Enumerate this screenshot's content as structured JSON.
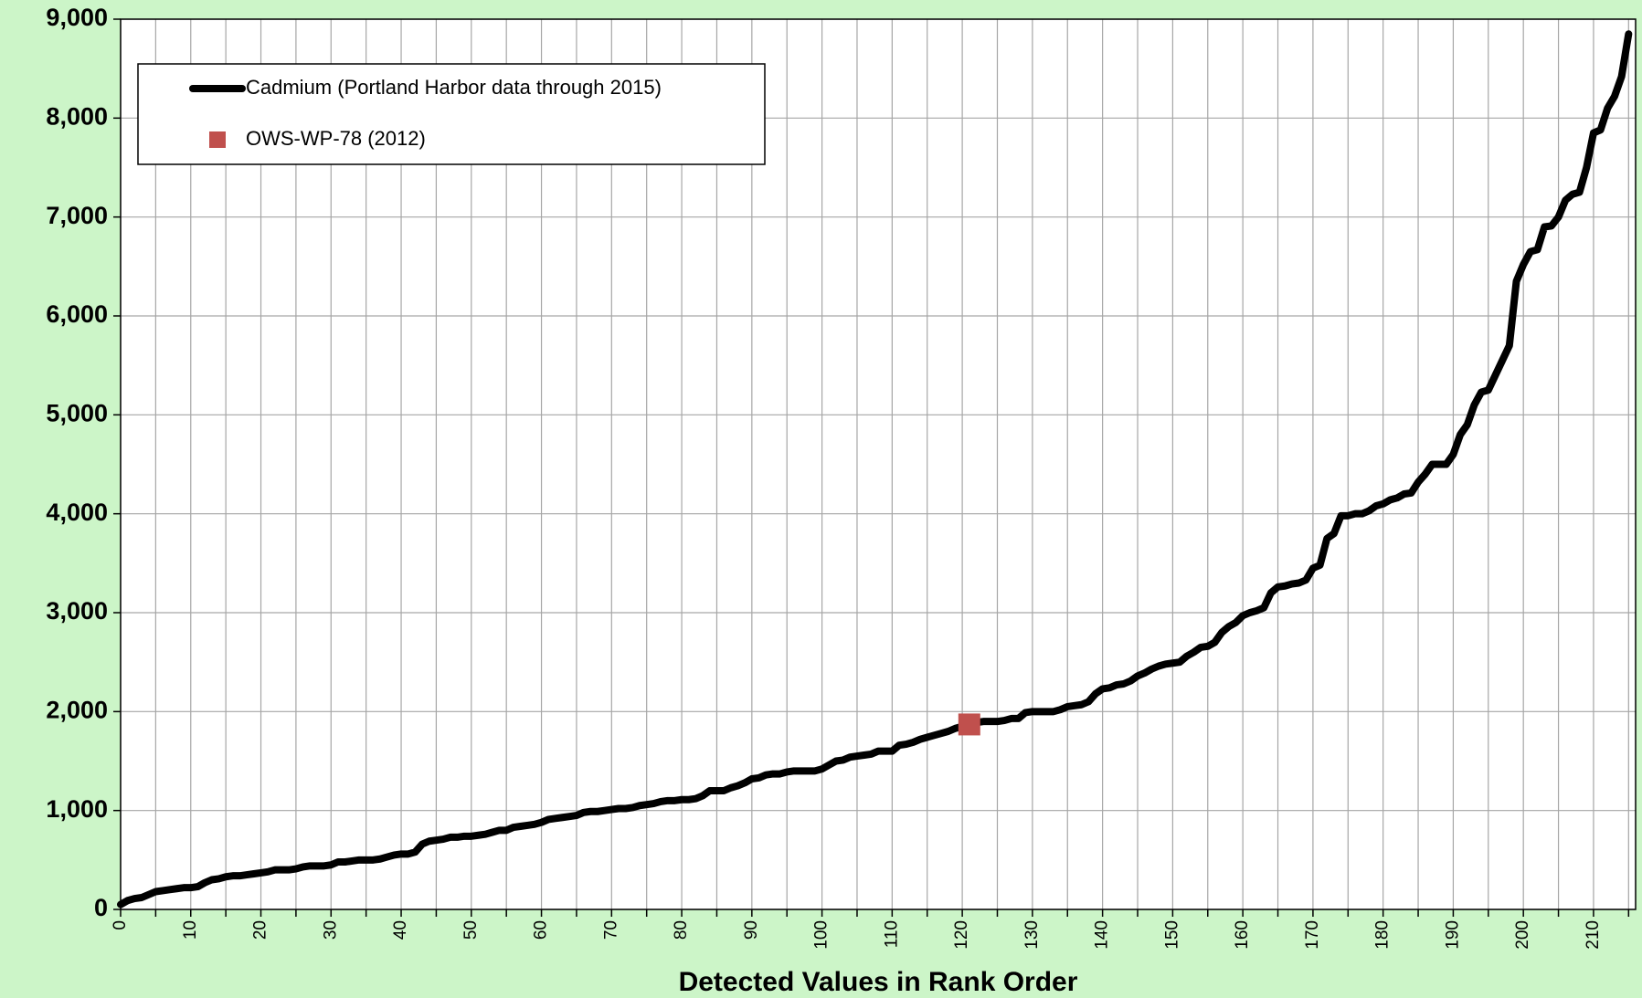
{
  "chart_data": {
    "type": "line",
    "xlabel": "Detected Values in Rank Order",
    "legend": "upper left",
    "grid": true,
    "xlim": [
      0,
      216
    ],
    "ylim": [
      0,
      9000
    ],
    "xticks": [
      0,
      10,
      20,
      30,
      40,
      50,
      60,
      70,
      80,
      90,
      100,
      110,
      120,
      130,
      140,
      150,
      160,
      170,
      180,
      190,
      200,
      210
    ],
    "x_minor_ticks": [
      5,
      15,
      25,
      35,
      45,
      55,
      65,
      75,
      85,
      95,
      105,
      115,
      125,
      135,
      145,
      155,
      165,
      175,
      185,
      195,
      205,
      215
    ],
    "yticks": [
      0,
      {
        "value": 1000,
        "label": "1,000"
      },
      {
        "value": 2000,
        "label": "2,000"
      },
      {
        "value": 3000,
        "label": "3,000"
      },
      {
        "value": 4000,
        "label": "4,000"
      },
      {
        "value": 5000,
        "label": "5,000"
      },
      {
        "value": 6000,
        "label": "6,000"
      },
      {
        "value": 7000,
        "label": "7,000"
      },
      {
        "value": 8000,
        "label": "8,000"
      },
      {
        "value": 9000,
        "label": "9,000"
      }
    ],
    "series": [
      {
        "name": "Cadmium (Portland Harbor data through 2015)",
        "color": "#000000",
        "marker": "none",
        "x": [
          0,
          1,
          2,
          3,
          4,
          5,
          6,
          7,
          8,
          9,
          10,
          11,
          12,
          13,
          14,
          15,
          16,
          17,
          18,
          19,
          20,
          21,
          22,
          23,
          24,
          25,
          26,
          27,
          28,
          29,
          30,
          31,
          32,
          33,
          34,
          35,
          36,
          37,
          38,
          39,
          40,
          41,
          42,
          43,
          44,
          45,
          46,
          47,
          48,
          49,
          50,
          51,
          52,
          53,
          54,
          55,
          56,
          57,
          58,
          59,
          60,
          61,
          62,
          63,
          64,
          65,
          66,
          67,
          68,
          69,
          70,
          71,
          72,
          73,
          74,
          75,
          76,
          77,
          78,
          79,
          80,
          81,
          82,
          83,
          84,
          85,
          86,
          87,
          88,
          89,
          90,
          91,
          92,
          93,
          94,
          95,
          96,
          97,
          98,
          99,
          100,
          101,
          102,
          103,
          104,
          105,
          106,
          107,
          108,
          109,
          110,
          111,
          112,
          113,
          114,
          115,
          116,
          117,
          118,
          119,
          120,
          121,
          122,
          123,
          124,
          125,
          126,
          127,
          128,
          129,
          130,
          131,
          132,
          133,
          134,
          135,
          136,
          137,
          138,
          139,
          140,
          141,
          142,
          143,
          144,
          145,
          146,
          147,
          148,
          149,
          150,
          151,
          152,
          153,
          154,
          155,
          156,
          157,
          158,
          159,
          160,
          161,
          162,
          163,
          164,
          165,
          166,
          167,
          168,
          169,
          170,
          171,
          172,
          173,
          174,
          175,
          176,
          177,
          178,
          179,
          180,
          181,
          182,
          183,
          184,
          185,
          186,
          187,
          188,
          189,
          190,
          191,
          192,
          193,
          194,
          195,
          196,
          197,
          198,
          199,
          200,
          201,
          202,
          203,
          204,
          205,
          206,
          207,
          208,
          209,
          210,
          211,
          212,
          213,
          214,
          215
        ],
        "values": [
          50,
          90,
          110,
          120,
          150,
          180,
          190,
          200,
          210,
          220,
          220,
          230,
          270,
          300,
          310,
          330,
          340,
          340,
          350,
          360,
          370,
          380,
          400,
          400,
          400,
          410,
          430,
          440,
          440,
          440,
          450,
          480,
          480,
          490,
          500,
          500,
          500,
          510,
          530,
          550,
          560,
          560,
          580,
          660,
          690,
          700,
          710,
          730,
          730,
          740,
          740,
          750,
          760,
          780,
          800,
          800,
          830,
          840,
          850,
          860,
          880,
          910,
          920,
          930,
          940,
          950,
          980,
          990,
          990,
          1000,
          1010,
          1020,
          1020,
          1030,
          1050,
          1060,
          1070,
          1090,
          1100,
          1100,
          1110,
          1110,
          1120,
          1150,
          1200,
          1200,
          1200,
          1230,
          1250,
          1280,
          1320,
          1330,
          1360,
          1370,
          1370,
          1390,
          1400,
          1400,
          1400,
          1400,
          1420,
          1460,
          1500,
          1510,
          1540,
          1550,
          1560,
          1570,
          1600,
          1600,
          1600,
          1660,
          1670,
          1690,
          1720,
          1740,
          1760,
          1780,
          1800,
          1830,
          1850,
          1870,
          1890,
          1900,
          1900,
          1900,
          1910,
          1930,
          1930,
          1990,
          2000,
          2000,
          2000,
          2000,
          2020,
          2050,
          2060,
          2070,
          2100,
          2180,
          2230,
          2240,
          2270,
          2280,
          2310,
          2360,
          2390,
          2430,
          2460,
          2480,
          2490,
          2500,
          2560,
          2600,
          2650,
          2660,
          2700,
          2800,
          2860,
          2900,
          2970,
          3000,
          3020,
          3050,
          3200,
          3260,
          3270,
          3290,
          3300,
          3330,
          3450,
          3480,
          3750,
          3800,
          3980,
          3980,
          4000,
          4000,
          4030,
          4080,
          4100,
          4140,
          4160,
          4200,
          4210,
          4320,
          4400,
          4500,
          4500,
          4500,
          4600,
          4800,
          4900,
          5100,
          5230,
          5250,
          5400,
          5550,
          5700,
          6350,
          6520,
          6650,
          6670,
          6900,
          6910,
          7000,
          7170,
          7230,
          7250,
          7500,
          7850,
          7880,
          8100,
          8220,
          8420,
          8850
        ]
      },
      {
        "name": "OWS-WP-78 (2012)",
        "color": "#c0504d",
        "marker": "square",
        "x": [
          121
        ],
        "values": [
          1870
        ]
      }
    ]
  }
}
